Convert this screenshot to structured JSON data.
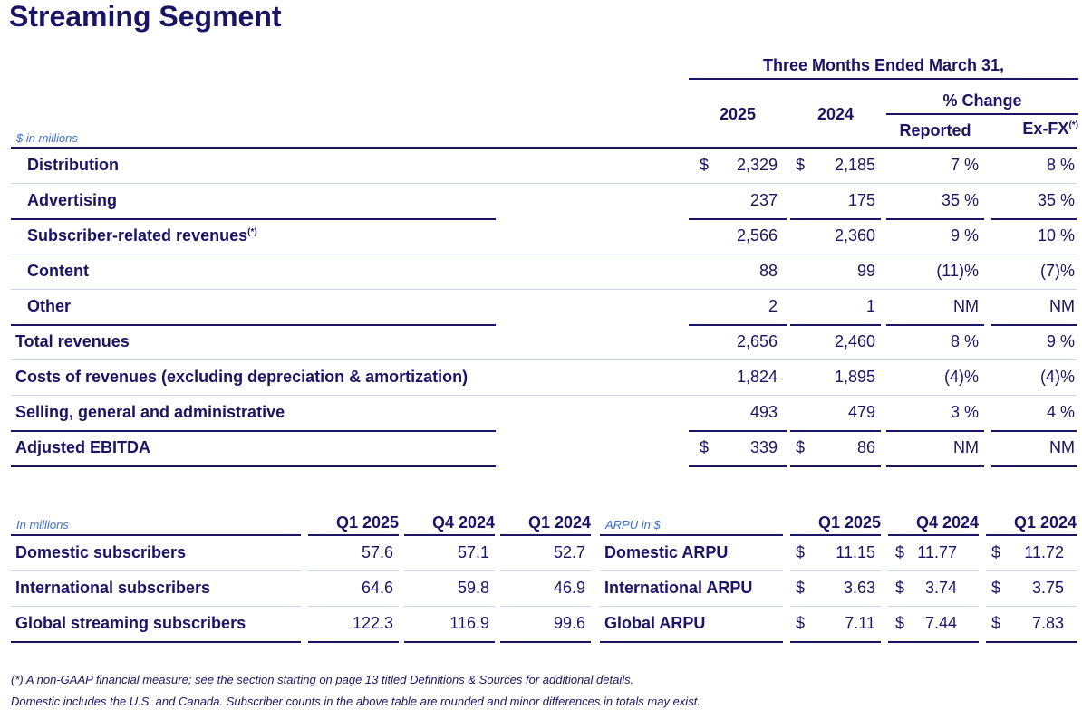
{
  "title": "Streaming Segment",
  "top_table": {
    "period_header": "Three Months Ended March 31,",
    "col_2025": "2025",
    "col_2024": "2024",
    "pct_change": "% Change",
    "reported": "Reported",
    "exfx": "Ex-FX",
    "exfx_note": "(*)",
    "unit": "$ in millions",
    "rows": [
      {
        "label": "Distribution",
        "note": "",
        "cur1": "$",
        "v2025": "2,329",
        "cur2": "$",
        "v2024": "2,185",
        "reported": "7 %",
        "exfx": "8 %"
      },
      {
        "label": "Advertising",
        "note": "",
        "cur1": "",
        "v2025": "237",
        "cur2": "",
        "v2024": "175",
        "reported": "35 %",
        "exfx": "35 %"
      },
      {
        "label": "Subscriber-related revenues",
        "note": "(*)",
        "cur1": "",
        "v2025": "2,566",
        "cur2": "",
        "v2024": "2,360",
        "reported": "9 %",
        "exfx": "10 %"
      },
      {
        "label": "Content",
        "note": "",
        "cur1": "",
        "v2025": "88",
        "cur2": "",
        "v2024": "99",
        "reported": "(11)%",
        "exfx": "(7)%"
      },
      {
        "label": "Other",
        "note": "",
        "cur1": "",
        "v2025": "2",
        "cur2": "",
        "v2024": "1",
        "reported": "NM",
        "exfx": "NM"
      },
      {
        "label": "Total revenues",
        "note": "",
        "cur1": "",
        "v2025": "2,656",
        "cur2": "",
        "v2024": "2,460",
        "reported": "8 %",
        "exfx": "9 %"
      },
      {
        "label": "Costs of revenues (excluding depreciation & amortization)",
        "note": "",
        "cur1": "",
        "v2025": "1,824",
        "cur2": "",
        "v2024": "1,895",
        "reported": "(4)%",
        "exfx": "(4)%"
      },
      {
        "label": "Selling, general and administrative",
        "note": "",
        "cur1": "",
        "v2025": "493",
        "cur2": "",
        "v2024": "479",
        "reported": "3 %",
        "exfx": "4 %"
      },
      {
        "label": "Adjusted EBITDA",
        "note": "",
        "cur1": "$",
        "v2025": "339",
        "cur2": "$",
        "v2024": "86",
        "reported": "NM",
        "exfx": "NM"
      }
    ]
  },
  "subs_table": {
    "unit": "In millions",
    "cols": [
      "Q1 2025",
      "Q4 2024",
      "Q1 2024"
    ],
    "rows": [
      {
        "label": "Domestic subscribers",
        "v": [
          "57.6",
          "57.1",
          "52.7"
        ]
      },
      {
        "label": "International subscribers",
        "v": [
          "64.6",
          "59.8",
          "46.9"
        ]
      },
      {
        "label": "Global streaming subscribers",
        "v": [
          "122.3",
          "116.9",
          "99.6"
        ]
      }
    ]
  },
  "arpu_table": {
    "unit": "ARPU in $",
    "cols": [
      "Q1 2025",
      "Q4 2024",
      "Q1 2024"
    ],
    "rows": [
      {
        "label": "Domestic ARPU",
        "c": [
          "$",
          "$",
          "$"
        ],
        "v": [
          "11.15",
          "11.77",
          "11.72"
        ]
      },
      {
        "label": "International ARPU",
        "c": [
          "$",
          "$",
          "$"
        ],
        "v": [
          "3.63",
          "3.74",
          "3.75"
        ]
      },
      {
        "label": "Global ARPU",
        "c": [
          "$",
          "$",
          "$"
        ],
        "v": [
          "7.11",
          "7.44",
          "7.83"
        ]
      }
    ]
  },
  "footnotes": [
    "(*) A non-GAAP financial measure;  see the section starting on page 13 titled Definitions & Sources for additional details.",
    "Domestic includes the U.S. and Canada. Subscriber counts in the above table are rounded and minor differences in totals may exist."
  ]
}
